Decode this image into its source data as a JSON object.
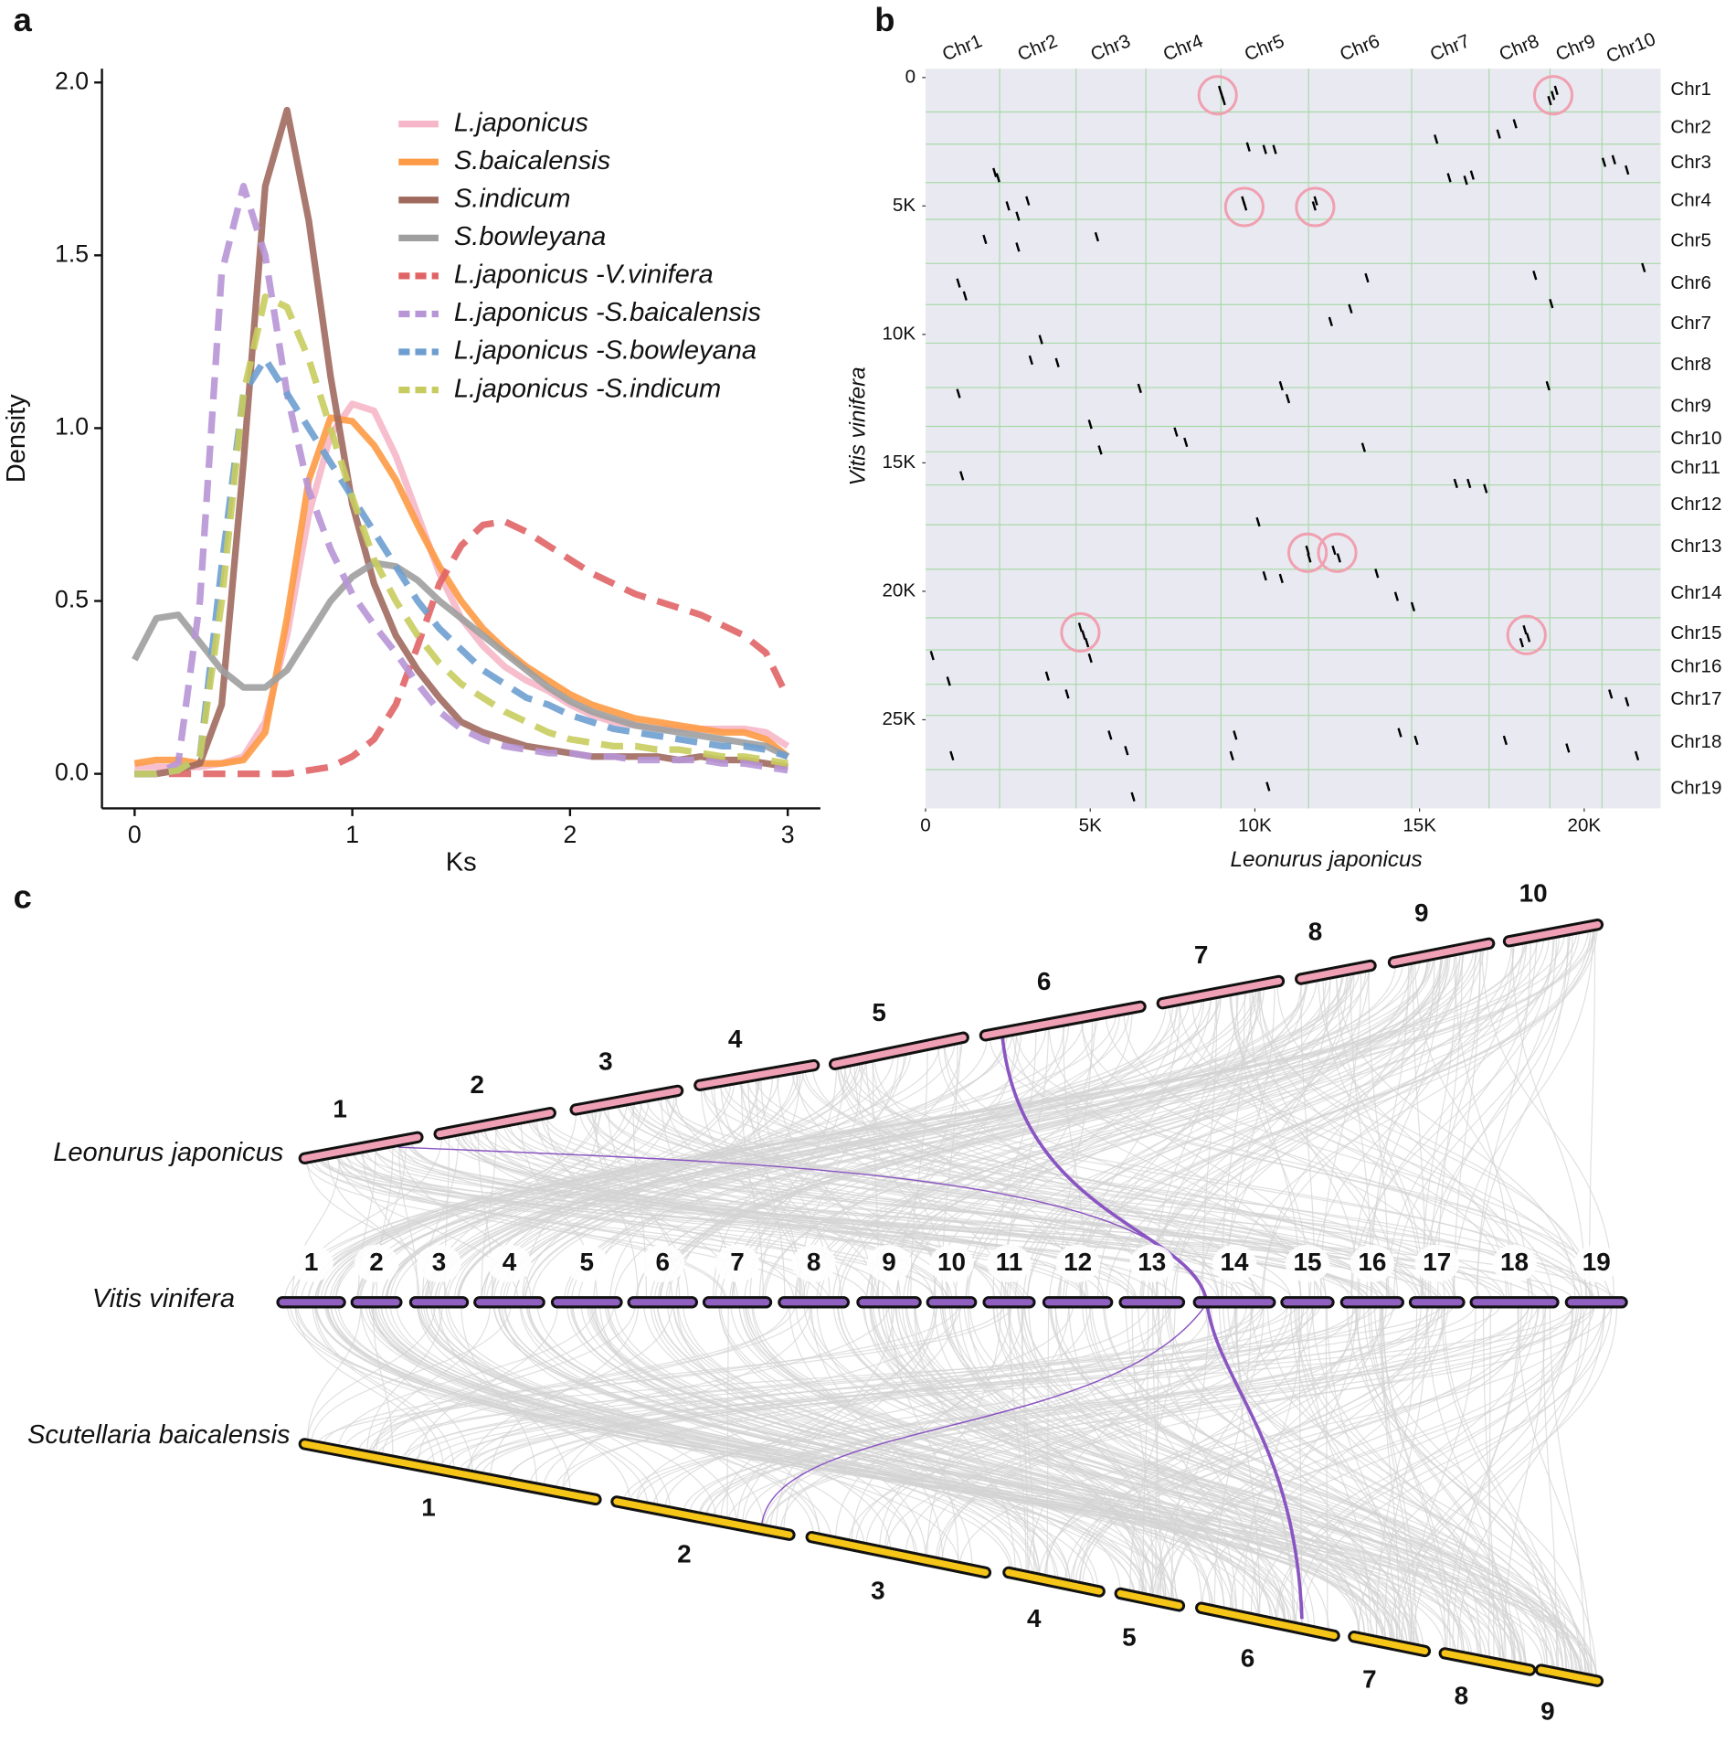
{
  "panel_labels": [
    "a",
    "b",
    "c"
  ],
  "chart_data": [
    {
      "type": "line",
      "x_label": "Ks",
      "y_label": "Density",
      "x": [
        0,
        0.1,
        0.2,
        0.3,
        0.4,
        0.5,
        0.6,
        0.7,
        0.8,
        0.9,
        1.0,
        1.1,
        1.2,
        1.3,
        1.4,
        1.5,
        1.6,
        1.7,
        1.8,
        1.9,
        2.0,
        2.1,
        2.2,
        2.3,
        2.4,
        2.5,
        2.6,
        2.7,
        2.8,
        2.9,
        3.0
      ],
      "series": [
        {
          "name": "L.japonicus",
          "color": "#f6b7c8",
          "dash": false,
          "values": [
            0.02,
            0.02,
            0.02,
            0.02,
            0.03,
            0.05,
            0.15,
            0.4,
            0.75,
            0.98,
            1.07,
            1.05,
            0.92,
            0.75,
            0.58,
            0.45,
            0.37,
            0.31,
            0.27,
            0.24,
            0.2,
            0.17,
            0.15,
            0.14,
            0.13,
            0.13,
            0.13,
            0.13,
            0.13,
            0.12,
            0.08
          ]
        },
        {
          "name": "S.baicalensis",
          "color": "#fd9a45",
          "dash": false,
          "values": [
            0.03,
            0.04,
            0.04,
            0.03,
            0.03,
            0.04,
            0.12,
            0.45,
            0.85,
            1.03,
            1.02,
            0.95,
            0.85,
            0.72,
            0.6,
            0.5,
            0.42,
            0.36,
            0.31,
            0.27,
            0.23,
            0.2,
            0.18,
            0.16,
            0.15,
            0.14,
            0.13,
            0.12,
            0.12,
            0.1,
            0.05
          ]
        },
        {
          "name": "S.indicum",
          "color": "#a0695e",
          "dash": false,
          "values": [
            0,
            0,
            0.01,
            0.03,
            0.2,
            0.9,
            1.7,
            1.92,
            1.6,
            1.15,
            0.78,
            0.55,
            0.4,
            0.3,
            0.22,
            0.15,
            0.12,
            0.1,
            0.08,
            0.07,
            0.06,
            0.05,
            0.05,
            0.05,
            0.05,
            0.04,
            0.05,
            0.04,
            0.04,
            0.03,
            0.02
          ]
        },
        {
          "name": "S.bowleyana",
          "color": "#9e9e9e",
          "dash": false,
          "values": [
            0.33,
            0.45,
            0.46,
            0.38,
            0.3,
            0.25,
            0.25,
            0.3,
            0.4,
            0.5,
            0.57,
            0.61,
            0.6,
            0.56,
            0.5,
            0.45,
            0.4,
            0.35,
            0.3,
            0.25,
            0.21,
            0.18,
            0.16,
            0.14,
            0.13,
            0.12,
            0.11,
            0.1,
            0.09,
            0.08,
            0.05
          ]
        },
        {
          "name": "L.japonicus -V.vinifera",
          "color": "#e06466",
          "dash": true,
          "values": [
            0,
            0,
            0,
            0,
            0,
            0,
            0,
            0,
            0.01,
            0.02,
            0.05,
            0.1,
            0.2,
            0.37,
            0.55,
            0.66,
            0.72,
            0.73,
            0.7,
            0.66,
            0.62,
            0.58,
            0.55,
            0.52,
            0.5,
            0.48,
            0.46,
            0.43,
            0.4,
            0.35,
            0.22
          ]
        },
        {
          "name": "L.japonicus -S.baicalensis",
          "color": "#b795d6",
          "dash": true,
          "values": [
            0,
            0,
            0.03,
            0.5,
            1.45,
            1.7,
            1.5,
            1.1,
            0.82,
            0.65,
            0.52,
            0.43,
            0.35,
            0.26,
            0.18,
            0.13,
            0.1,
            0.08,
            0.07,
            0.06,
            0.06,
            0.05,
            0.05,
            0.04,
            0.04,
            0.04,
            0.04,
            0.03,
            0.03,
            0.02,
            0.01
          ]
        },
        {
          "name": "L.japonicus -S.bowleyana",
          "color": "#6e9ed0",
          "dash": true,
          "values": [
            0,
            0,
            0.01,
            0.05,
            0.6,
            1.1,
            1.2,
            1.1,
            1.0,
            0.9,
            0.8,
            0.7,
            0.6,
            0.5,
            0.42,
            0.36,
            0.3,
            0.26,
            0.22,
            0.2,
            0.17,
            0.15,
            0.13,
            0.12,
            0.11,
            0.1,
            0.09,
            0.08,
            0.08,
            0.07,
            0.05
          ]
        },
        {
          "name": "L.japonicus -S.indicum",
          "color": "#c8cc5e",
          "dash": true,
          "values": [
            0,
            0,
            0.01,
            0.05,
            0.5,
            1.1,
            1.38,
            1.35,
            1.2,
            1.0,
            0.8,
            0.62,
            0.5,
            0.4,
            0.32,
            0.26,
            0.22,
            0.18,
            0.15,
            0.12,
            0.1,
            0.09,
            0.08,
            0.08,
            0.07,
            0.07,
            0.06,
            0.05,
            0.05,
            0.04,
            0.03
          ]
        }
      ],
      "xlim": [
        -0.15,
        3.15
      ],
      "xticks": [
        0,
        1,
        2,
        3
      ],
      "ylim": [
        -0.1,
        2.04
      ],
      "yticks": [
        {
          "value": 0,
          "label": "0.0"
        },
        {
          "value": 0.5,
          "label": "0.5"
        },
        {
          "value": 1,
          "label": "1.0"
        },
        {
          "value": 1.5,
          "label": "1.5"
        },
        {
          "value": 2,
          "label": "2.0"
        }
      ],
      "legend": "upper right"
    },
    {
      "type": "scatter",
      "x_label": "Leonurus japonicus",
      "y_label": "Vitis vinifera",
      "color": "#000000",
      "background": "#e9e9f1",
      "grid_color": "#a9d9a9",
      "x": [
        9000,
        8950,
        9050,
        19050,
        19150,
        18950,
        9700,
        9650,
        11800,
        11850,
        11600,
        11650,
        12400,
        12550,
        4700,
        4800,
        4900,
        18200,
        18300,
        18100,
        1200,
        1000,
        2500,
        2800,
        3100,
        2100,
        2200,
        9800,
        10300,
        10600,
        15900,
        16400,
        16600,
        20600,
        20900,
        21300,
        17400,
        17900,
        15500,
        3500,
        3200,
        4000,
        6500,
        5000,
        5300,
        7600,
        7900,
        10800,
        11000,
        13300,
        16100,
        16500,
        17000,
        1000,
        1100,
        10100,
        10300,
        10800,
        13700,
        14300,
        14800,
        200,
        700,
        3700,
        4300,
        5000,
        5600,
        6100,
        9400,
        14400,
        14900,
        20800,
        21300,
        21600,
        19500,
        17600,
        12300,
        12900,
        13400,
        18900,
        19000,
        18500,
        21800,
        1800,
        2800,
        5200,
        9300,
        10400,
        6300,
        800
      ],
      "y": [
        700,
        500,
        900,
        700,
        500,
        900,
        5000,
        4800,
        5000,
        4800,
        18400,
        18700,
        18400,
        18700,
        21400,
        21700,
        22000,
        21500,
        21800,
        22000,
        8500,
        8000,
        5000,
        5400,
        4800,
        3700,
        3900,
        2700,
        2800,
        2800,
        3900,
        4000,
        3800,
        3300,
        3200,
        3600,
        2200,
        1800,
        2400,
        10200,
        11000,
        11100,
        12100,
        13500,
        14500,
        13800,
        14200,
        12000,
        12500,
        14400,
        15800,
        15800,
        16000,
        12300,
        15500,
        17300,
        19400,
        19500,
        19300,
        20200,
        20600,
        22500,
        23500,
        23300,
        24000,
        22600,
        25600,
        26200,
        25600,
        25500,
        25800,
        24000,
        24300,
        26400,
        26100,
        25800,
        9500,
        9000,
        7800,
        12000,
        8800,
        7700,
        7400,
        6300,
        6600,
        6200,
        26400,
        27600,
        28000,
        26400
      ],
      "xlim": [
        0,
        22320
      ],
      "xticks": [
        0,
        {
          "value": 5000,
          "label": "5K"
        },
        {
          "value": 10000,
          "label": "10K"
        },
        {
          "value": 15000,
          "label": "15K"
        },
        {
          "value": 20000,
          "label": "20K"
        }
      ],
      "ylim": [
        28450,
        -345
      ],
      "yticks": [
        0,
        {
          "value": 5000,
          "label": "5K"
        },
        {
          "value": 10000,
          "label": "10K"
        },
        {
          "value": 15000,
          "label": "15K"
        },
        {
          "value": 20000,
          "label": "20K"
        },
        {
          "value": 25000,
          "label": "25K"
        }
      ],
      "x_chromosomes": {
        "labels": [
          "Chr1",
          "Chr2",
          "Chr3",
          "Chr4",
          "Chr5",
          "Chr6",
          "Chr7",
          "Chr8",
          "Chr9",
          "Chr10"
        ],
        "boundaries": [
          2250,
          4570,
          6690,
          8970,
          11630,
          14760,
          17110,
          18960,
          20540
        ]
      },
      "y_chromosomes": {
        "labels": [
          "Chr1",
          "Chr2",
          "Chr3",
          "Chr4",
          "Chr5",
          "Chr6",
          "Chr7",
          "Chr8",
          "Chr9",
          "Chr10",
          "Chr11",
          "Chr12",
          "Chr13",
          "Chr14",
          "Chr15",
          "Chr16",
          "Chr17",
          "Chr18",
          "Chr19"
        ],
        "boundaries": [
          1340,
          2590,
          4090,
          5520,
          7240,
          8840,
          10340,
          12070,
          13580,
          14570,
          15860,
          17410,
          19140,
          21030,
          22280,
          23620,
          24830,
          26940
        ]
      },
      "highlights": {
        "color": "#f0a0b0",
        "x": [
          8870,
          19060,
          9680,
          11830,
          11600,
          12500,
          4700,
          18250
        ],
        "y": [
          690,
          690,
          5040,
          5040,
          18500,
          18500,
          21600,
          21700
        ]
      }
    }
  ],
  "synteny": {
    "species": [
      {
        "name": "Leonurus japonicus",
        "color": "#f0a0b4",
        "chromosomes": [
          "1",
          "2",
          "3",
          "4",
          "5",
          "6",
          "7",
          "8",
          "9",
          "10"
        ]
      },
      {
        "name": "Vitis vinifera",
        "color": "#9060c0",
        "chromosomes": [
          "1",
          "2",
          "3",
          "4",
          "5",
          "6",
          "7",
          "8",
          "9",
          "10",
          "11",
          "12",
          "13",
          "14",
          "15",
          "16",
          "17",
          "18",
          "19"
        ]
      },
      {
        "name": "Scutellaria baicalensis",
        "color": "#f5c518",
        "chromosomes": [
          "1",
          "2",
          "3",
          "4",
          "5",
          "6",
          "7",
          "8",
          "9"
        ]
      }
    ]
  }
}
